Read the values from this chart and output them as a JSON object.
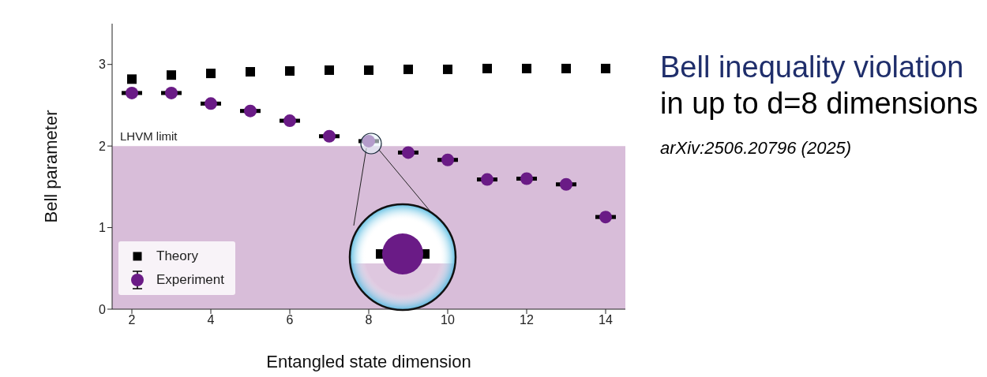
{
  "chart_data": {
    "type": "scatter",
    "xlabel": "Entangled state dimension",
    "ylabel": "Bell parameter",
    "x": [
      2,
      3,
      4,
      5,
      6,
      7,
      8,
      9,
      10,
      11,
      12,
      13,
      14
    ],
    "series": [
      {
        "name": "Theory",
        "color": "#000000",
        "marker": "square",
        "values": [
          2.82,
          2.87,
          2.89,
          2.91,
          2.92,
          2.93,
          2.93,
          2.94,
          2.94,
          2.95,
          2.95,
          2.95,
          2.95
        ]
      },
      {
        "name": "Experiment",
        "color": "#6a1b86",
        "marker": "circle",
        "values": [
          2.65,
          2.65,
          2.52,
          2.43,
          2.31,
          2.12,
          2.06,
          1.92,
          1.83,
          1.59,
          1.6,
          1.53,
          1.13
        ],
        "errors": [
          0.01,
          0.01,
          0.01,
          0.01,
          0.01,
          0.01,
          0.01,
          0.01,
          0.01,
          0.01,
          0.01,
          0.01,
          0.01
        ]
      }
    ],
    "bands": [
      {
        "axis": "y",
        "from": 0,
        "to": 2,
        "label": "LHVM limit",
        "color": "#d8bdd9"
      }
    ],
    "xlim": [
      1.5,
      14.5
    ],
    "xticks": [
      2,
      4,
      6,
      8,
      10,
      12,
      14
    ],
    "ylim": [
      0,
      3.5
    ],
    "yticks": [
      0,
      1,
      2,
      3
    ],
    "grid": false,
    "legend": "bottom left",
    "annotations": [
      "Bell inequality violation",
      "in up to d=8 dimensions",
      "arXiv:2506.20796 (2025)"
    ]
  }
}
